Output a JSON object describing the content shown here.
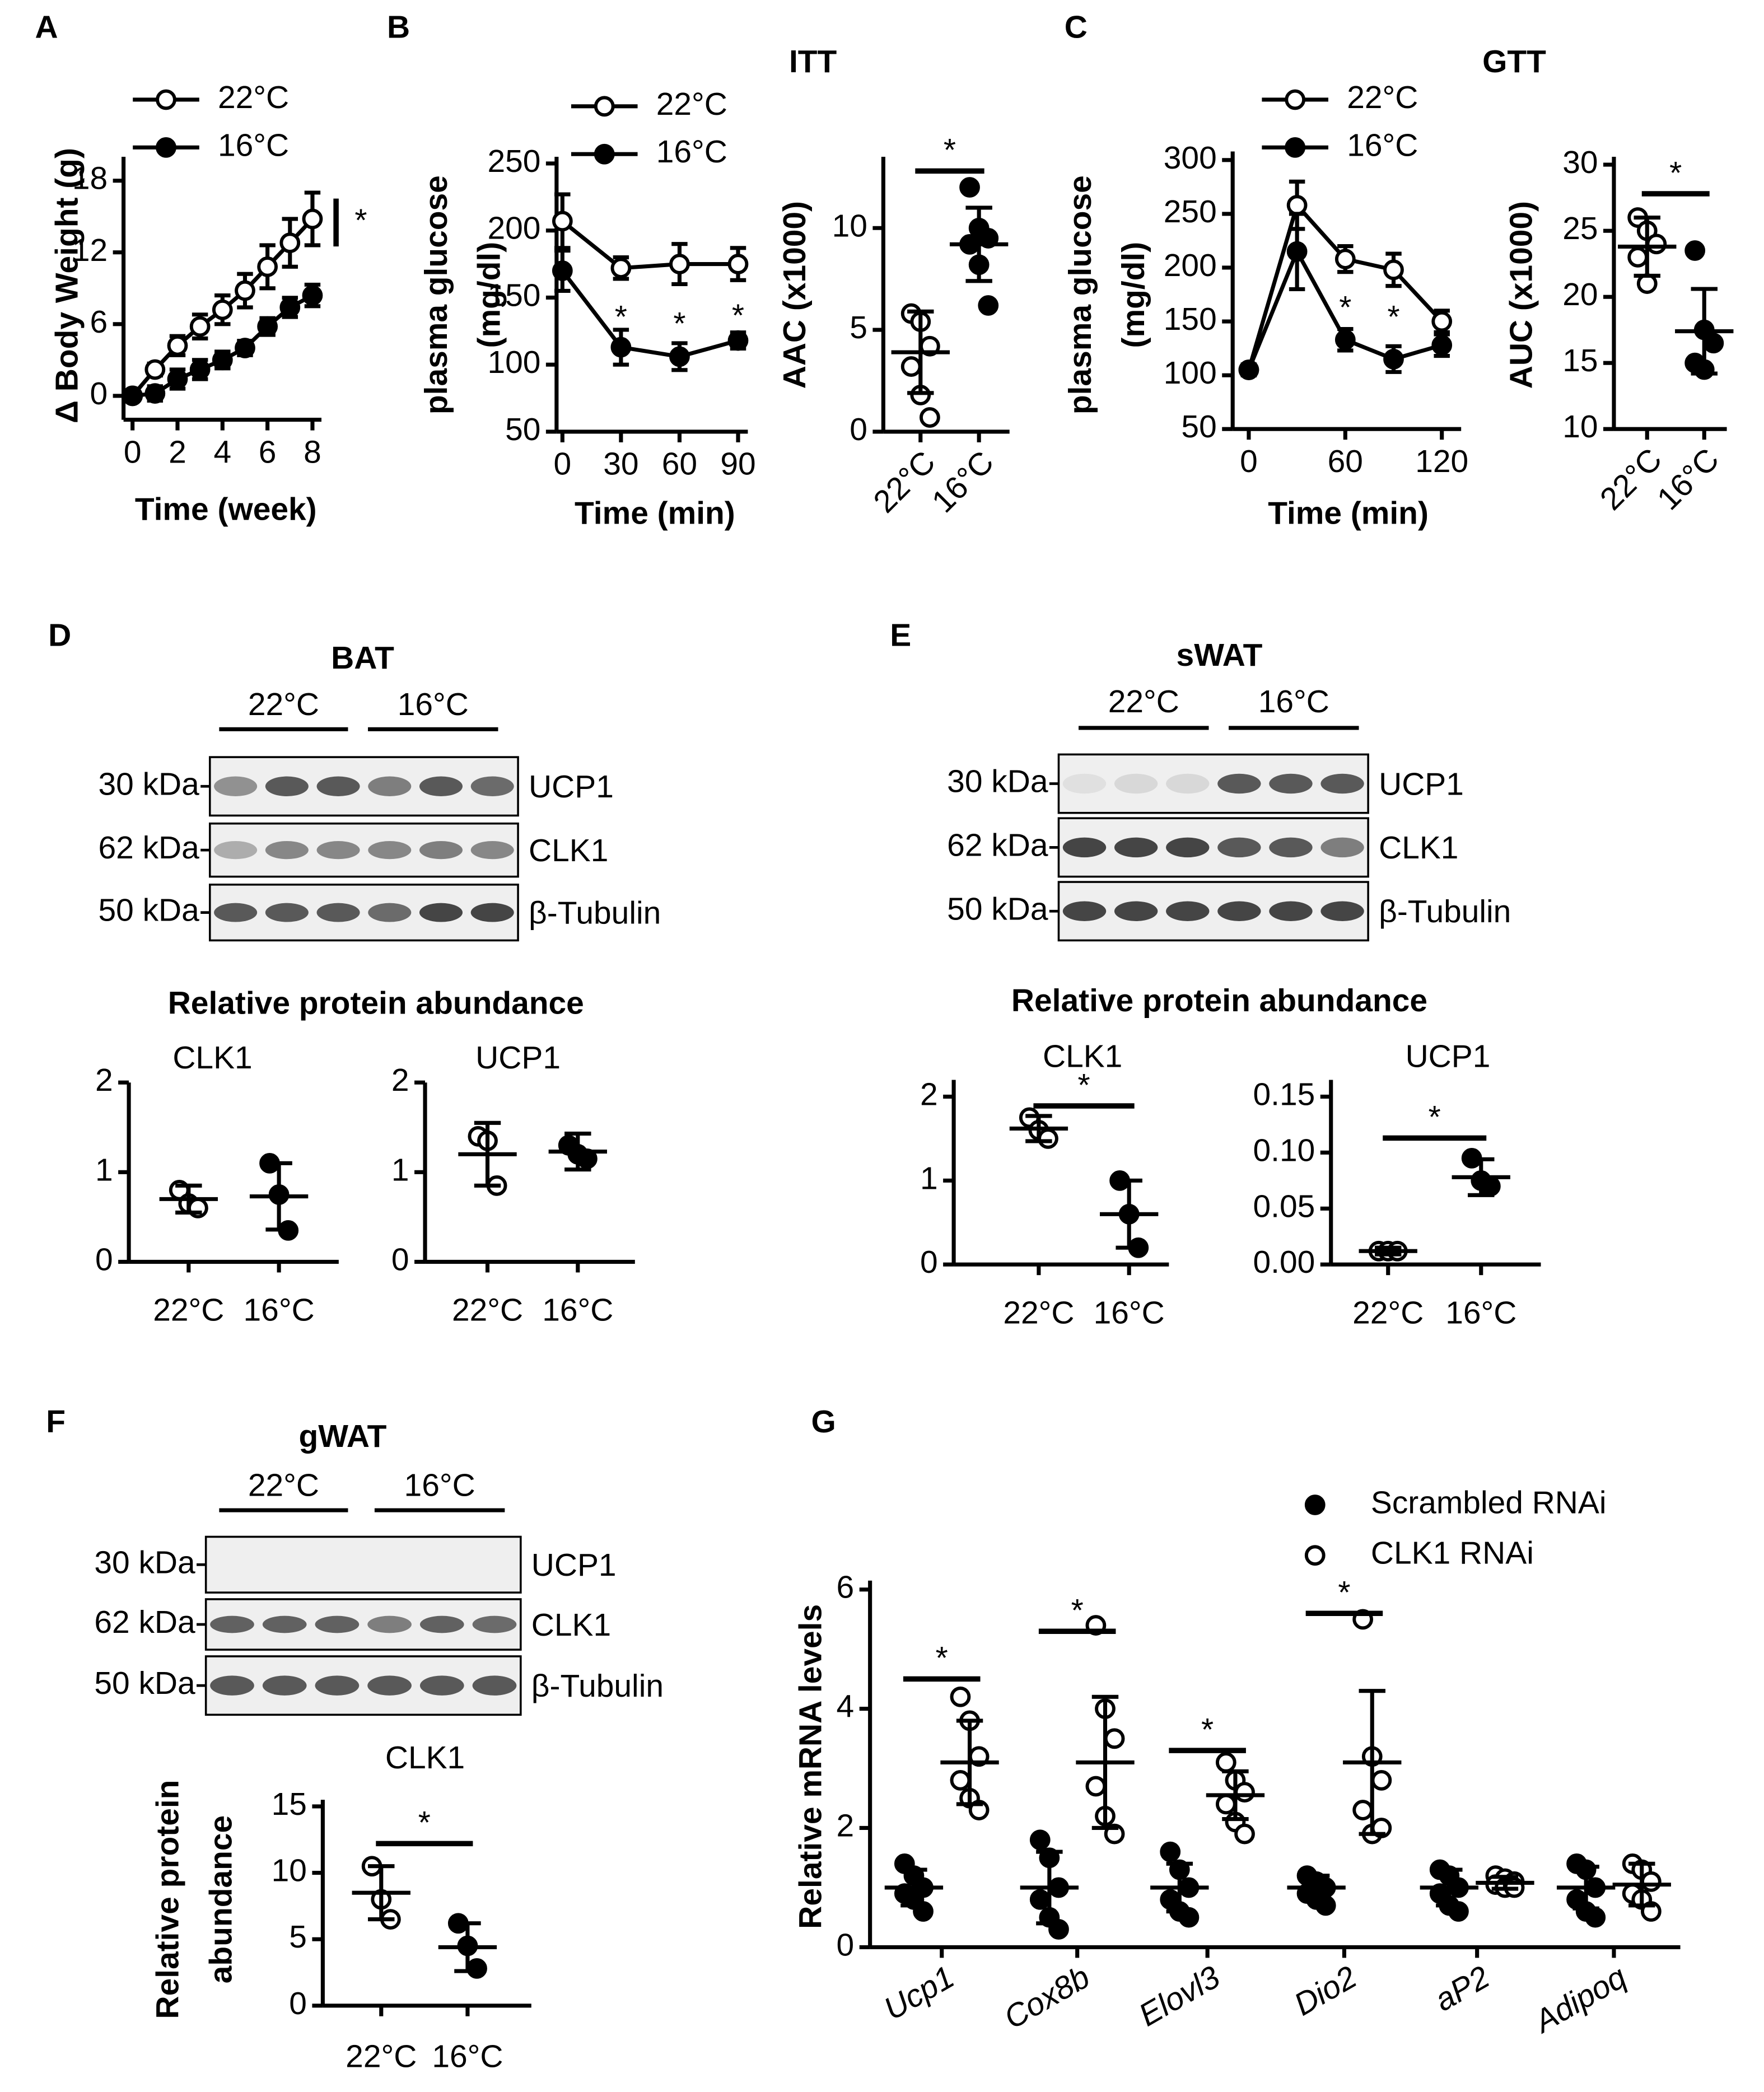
{
  "panel_labels": [
    "A",
    "B",
    "C",
    "D",
    "E",
    "F",
    "G"
  ],
  "chart_data": [
    {
      "type": "line",
      "xlabel": "Time (week)",
      "ylabel": [
        "Δ Body Weight (g)"
      ],
      "x": [
        0,
        1,
        2,
        3,
        4,
        5,
        6,
        7,
        8
      ],
      "xlim": [
        -0.4,
        8.4
      ],
      "xticks": [
        0,
        2,
        4,
        6,
        8
      ],
      "ylim": [
        -2,
        20
      ],
      "yticks": [
        0,
        6,
        12,
        18
      ],
      "series": [
        {
          "name": "22°C",
          "marker": "open",
          "values": [
            0,
            2.2,
            4.2,
            5.8,
            7.2,
            8.8,
            10.8,
            12.8,
            14.8
          ],
          "errors": [
            0.3,
            0.5,
            0.8,
            1,
            1.2,
            1.4,
            1.8,
            2,
            2.2
          ]
        },
        {
          "name": "16°C",
          "marker": "filled",
          "values": [
            0,
            0.2,
            1.4,
            2.2,
            3,
            4,
            5.8,
            7.4,
            8.4
          ],
          "errors": [
            0.3,
            0.6,
            0.8,
            0.8,
            0.7,
            0.6,
            0.7,
            0.8,
            0.9
          ]
        }
      ],
      "significance": {
        "label": "*",
        "span": [
          12.5,
          16.5
        ]
      }
    },
    {
      "type": "line",
      "title": "ITT",
      "xlabel": "Time (min)",
      "ylabel": [
        "plasma glucose",
        "(mg/dl)"
      ],
      "x": [
        0,
        30,
        60,
        90
      ],
      "xlim": [
        -3,
        95
      ],
      "xticks": [
        0,
        30,
        60,
        90
      ],
      "ylim": [
        50,
        255
      ],
      "yticks": [
        50,
        100,
        150,
        200,
        250
      ],
      "series": [
        {
          "name": "22°C",
          "marker": "open",
          "values": [
            207,
            172,
            175,
            175
          ],
          "errors": [
            20,
            8,
            15,
            12
          ]
        },
        {
          "name": "16°C",
          "marker": "filled",
          "values": [
            170,
            113,
            106,
            118
          ],
          "errors": [
            15,
            13,
            10,
            6
          ]
        }
      ],
      "annotations": [
        {
          "text": "*",
          "x": 30,
          "y": 134
        },
        {
          "text": "*",
          "x": 60,
          "y": 129
        },
        {
          "text": "*",
          "x": 90,
          "y": 135
        }
      ]
    },
    {
      "type": "dot",
      "ylabel": [
        "AAC (x1000)"
      ],
      "categories": [
        "22°C",
        "16°C"
      ],
      "markers": [
        "open",
        "filled"
      ],
      "ylim": [
        0,
        13.5
      ],
      "yticks": [
        0,
        5,
        10
      ],
      "series": [
        {
          "points": [
            [
              5.8,
              5.4,
              4.2,
              3.2,
              1.8,
              0.7
            ],
            [
              12,
              10,
              9.5,
              9.2,
              8.2,
              6.2
            ]
          ],
          "mean": [
            3.9,
            9.2
          ],
          "sd": [
            2,
            1.8
          ]
        }
      ],
      "significance": [
        {
          "label": "*",
          "y": 12.8
        }
      ]
    },
    {
      "type": "line",
      "title": "GTT",
      "xlabel": "Time (min)",
      "ylabel": [
        "plasma glucose",
        "(mg/dl)"
      ],
      "x": [
        0,
        30,
        60,
        90,
        120
      ],
      "xlim": [
        -10,
        132
      ],
      "xticks": [
        0,
        60,
        120
      ],
      "ylim": [
        50,
        308
      ],
      "yticks": [
        50,
        100,
        150,
        200,
        250,
        300
      ],
      "series": [
        {
          "name": "22°C",
          "marker": "open",
          "values": [
            105,
            258,
            208,
            198,
            150
          ],
          "errors": [
            5,
            22,
            12,
            15,
            10
          ]
        },
        {
          "name": "16°C",
          "marker": "filled",
          "values": [
            105,
            215,
            133,
            115,
            128
          ],
          "errors": [
            5,
            35,
            10,
            12,
            10
          ]
        }
      ],
      "annotations": [
        {
          "text": "*",
          "x": 60,
          "y": 161
        },
        {
          "text": "*",
          "x": 90,
          "y": 152
        }
      ]
    },
    {
      "type": "dot",
      "ylabel": [
        "AUC (x1000)"
      ],
      "categories": [
        "22°C",
        "16°C"
      ],
      "markers": [
        "open",
        "filled"
      ],
      "ylim": [
        10,
        30.6
      ],
      "yticks": [
        10,
        15,
        20,
        25,
        30
      ],
      "series": [
        {
          "points": [
            [
              26,
              25,
              24,
              23,
              21
            ],
            [
              23.5,
              17.5,
              16.5,
              15,
              14.5
            ]
          ],
          "mean": [
            23.8,
            17.4
          ],
          "sd": [
            2.2,
            3.2
          ]
        }
      ],
      "significance": [
        {
          "label": "*",
          "y": 27.8
        }
      ]
    },
    {
      "type": "dot",
      "title": "CLK1",
      "categories": [
        "22°C",
        "16°C"
      ],
      "markers": [
        "open",
        "filled"
      ],
      "ylim": [
        0,
        2
      ],
      "yticks": [
        0,
        1,
        2
      ],
      "series": [
        {
          "points": [
            [
              0.8,
              0.65,
              0.6
            ],
            [
              1.1,
              0.75,
              0.35
            ]
          ],
          "mean": [
            0.7,
            0.73
          ],
          "sd": [
            0.15,
            0.37
          ]
        }
      ]
    },
    {
      "type": "dot",
      "title": "UCP1",
      "categories": [
        "22°C",
        "16°C"
      ],
      "markers": [
        "open",
        "filled"
      ],
      "ylim": [
        0,
        2
      ],
      "yticks": [
        0,
        1,
        2
      ],
      "series": [
        {
          "points": [
            [
              1.4,
              1.35,
              0.85
            ],
            [
              1.3,
              1.2,
              1.15
            ]
          ],
          "mean": [
            1.2,
            1.23
          ],
          "sd": [
            0.35,
            0.2
          ]
        }
      ]
    },
    {
      "type": "dot",
      "title": "CLK1",
      "categories": [
        "22°C",
        "16°C"
      ],
      "markers": [
        "open",
        "filled"
      ],
      "ylim": [
        0,
        2.2
      ],
      "yticks": [
        0,
        1,
        2
      ],
      "series": [
        {
          "points": [
            [
              1.75,
              1.6,
              1.5
            ],
            [
              1,
              0.6,
              0.2
            ]
          ],
          "mean": [
            1.62,
            0.6
          ],
          "sd": [
            0.15,
            0.4
          ]
        }
      ],
      "significance": [
        {
          "label": "*",
          "y": 1.89
        }
      ]
    },
    {
      "type": "dot",
      "title": "UCP1",
      "categories": [
        "22°C",
        "16°C"
      ],
      "markers": [
        "open",
        "filled"
      ],
      "ylim": [
        0,
        0.165
      ],
      "yticks": [
        {
          "value": 0,
          "label": "0.00"
        },
        {
          "value": 0.05,
          "label": "0.05"
        },
        {
          "value": 0.1,
          "label": "0.10"
        },
        {
          "value": 0.15,
          "label": "0.15"
        }
      ],
      "series": [
        {
          "points": [
            [
              0.012,
              0.012,
              0.012
            ],
            [
              0.095,
              0.075,
              0.07
            ]
          ],
          "mean": [
            0.012,
            0.078
          ],
          "sd": [
            0.003,
            0.016
          ]
        }
      ],
      "significance": [
        {
          "label": "*",
          "y": 0.113
        }
      ]
    },
    {
      "type": "dot",
      "title": "CLK1",
      "ylabel": [
        "Relative protein",
        "abundance"
      ],
      "categories": [
        "22°C",
        "16°C"
      ],
      "markers": [
        "open",
        "filled"
      ],
      "ylim": [
        0,
        15.5
      ],
      "yticks": [
        0,
        5,
        10,
        15
      ],
      "series": [
        {
          "points": [
            [
              10.5,
              8,
              6.5
            ],
            [
              6.2,
              4.5,
              2.8
            ]
          ],
          "mean": [
            8.5,
            4.4
          ],
          "sd": [
            2,
            1.8
          ]
        }
      ],
      "significance": [
        {
          "label": "*",
          "y": 12.2
        }
      ]
    },
    {
      "type": "dot",
      "ylabel": [
        "Relative mRNA levels"
      ],
      "categories": [
        "Ucp1",
        "Cox8b",
        "Elovl3",
        "Dio2",
        "aP2",
        "Adipoq"
      ],
      "ylim": [
        0,
        6.15
      ],
      "yticks": [
        0,
        2,
        4,
        6
      ],
      "series": [
        {
          "name": "Scrambled RNAi",
          "marker": "filled",
          "points": [
            [
              1.4,
              1.2,
              1,
              0.9,
              0.8,
              0.6
            ],
            [
              1.8,
              1.5,
              1,
              0.8,
              0.5,
              0.3
            ],
            [
              1.6,
              1.3,
              1,
              0.8,
              0.6,
              0.5
            ],
            [
              1.2,
              1.1,
              1,
              0.9,
              0.8,
              0.7
            ],
            [
              1.3,
              1.2,
              1,
              0.9,
              0.7,
              0.6
            ],
            [
              1.4,
              1.3,
              1,
              0.8,
              0.6,
              0.5
            ]
          ],
          "mean": [
            1,
            1,
            1,
            1,
            1,
            1
          ],
          "sd": [
            0.3,
            0.6,
            0.4,
            0.2,
            0.3,
            0.35
          ]
        },
        {
          "name": "CLK1 RNAi",
          "marker": "open",
          "points": [
            [
              4.2,
              3.8,
              3.2,
              2.8,
              2.5,
              2.3
            ],
            [
              5.4,
              4,
              3.5,
              2.7,
              2.2,
              1.9
            ],
            [
              3.1,
              2.8,
              2.6,
              2.4,
              2.1,
              1.9
            ],
            [
              5.5,
              3.2,
              2.8,
              2.3,
              1.9,
              2
            ],
            [
              1.2,
              1.15,
              1.1,
              1.05,
              1,
              1
            ],
            [
              1.4,
              1.3,
              1.1,
              0.9,
              0.8,
              0.6
            ]
          ],
          "mean": [
            3.1,
            3.1,
            2.55,
            3.1,
            1.08,
            1.05
          ],
          "sd": [
            0.7,
            1.1,
            0.4,
            1.2,
            0.1,
            0.35
          ]
        }
      ],
      "significance": [
        {
          "category": "Ucp1",
          "label": "*",
          "y": 4.5
        },
        {
          "category": "Cox8b",
          "label": "*",
          "y": 5.3
        },
        {
          "category": "Elovl3",
          "label": "*",
          "y": 3.3
        },
        {
          "category": "Dio2",
          "label": "*",
          "y": 5.6
        }
      ]
    }
  ],
  "blots": [
    {
      "title": "BAT",
      "groups": [
        "22°C",
        "16°C"
      ],
      "rows": [
        {
          "kda": "30 kDa",
          "protein": "UCP1"
        },
        {
          "kda": "62 kDa",
          "protein": "CLK1"
        },
        {
          "kda": "50 kDa",
          "protein": "β-Tubulin"
        }
      ],
      "heading": "Relative protein abundance"
    },
    {
      "title": "sWAT",
      "groups": [
        "22°C",
        "16°C"
      ],
      "rows": [
        {
          "kda": "30 kDa",
          "protein": "UCP1"
        },
        {
          "kda": "62 kDa",
          "protein": "CLK1"
        },
        {
          "kda": "50 kDa",
          "protein": "β-Tubulin"
        }
      ],
      "heading": "Relative protein abundance"
    },
    {
      "title": "gWAT",
      "groups": [
        "22°C",
        "16°C"
      ],
      "rows": [
        {
          "kda": "30 kDa",
          "protein": "UCP1"
        },
        {
          "kda": "62 kDa",
          "protein": "CLK1"
        },
        {
          "kda": "50 kDa",
          "protein": "β-Tubulin"
        }
      ]
    }
  ]
}
